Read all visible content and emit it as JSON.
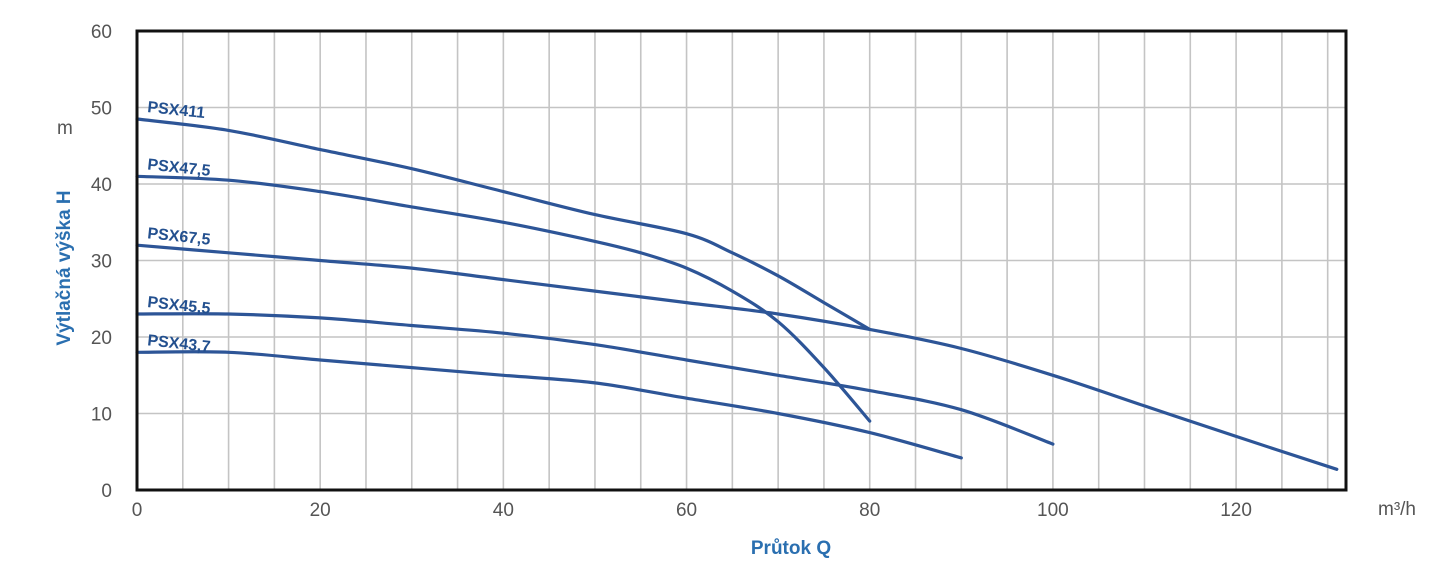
{
  "chart_data": {
    "type": "line",
    "title": "",
    "xlabel": "Průtok Q",
    "ylabel": "Výtlačná výška H",
    "x_unit": "m³/h",
    "y_unit": "m",
    "xlim": [
      0,
      132
    ],
    "ylim": [
      0,
      60
    ],
    "x_ticks": [
      0,
      20,
      40,
      60,
      80,
      100,
      120
    ],
    "y_ticks": [
      0,
      10,
      20,
      30,
      40,
      50,
      60
    ],
    "x_grid_step": 5,
    "y_grid_step": 10,
    "grid": true,
    "legend": "labels on curves",
    "line_color": "#2d5597",
    "series": [
      {
        "name": "PSX411",
        "points": [
          [
            0,
            48.5
          ],
          [
            10,
            47
          ],
          [
            20,
            44.5
          ],
          [
            30,
            42
          ],
          [
            40,
            39
          ],
          [
            50,
            36
          ],
          [
            60,
            33.5
          ],
          [
            65,
            31
          ],
          [
            70,
            28
          ],
          [
            75,
            24.5
          ],
          [
            80,
            21
          ]
        ]
      },
      {
        "name": "PSX47,5",
        "points": [
          [
            0,
            41
          ],
          [
            10,
            40.5
          ],
          [
            20,
            39
          ],
          [
            30,
            37
          ],
          [
            40,
            35
          ],
          [
            50,
            32.5
          ],
          [
            55,
            31
          ],
          [
            60,
            29
          ],
          [
            65,
            26
          ],
          [
            70,
            22
          ],
          [
            75,
            16
          ],
          [
            80,
            9
          ]
        ]
      },
      {
        "name": "PSX67,5",
        "points": [
          [
            0,
            32
          ],
          [
            10,
            31
          ],
          [
            20,
            30
          ],
          [
            30,
            29
          ],
          [
            40,
            27.5
          ],
          [
            50,
            26
          ],
          [
            60,
            24.5
          ],
          [
            70,
            23
          ],
          [
            80,
            21
          ],
          [
            90,
            18.5
          ],
          [
            100,
            15
          ],
          [
            110,
            11
          ],
          [
            120,
            7
          ],
          [
            131,
            2.7
          ]
        ]
      },
      {
        "name": "PSX45,5",
        "points": [
          [
            0,
            23
          ],
          [
            10,
            23
          ],
          [
            20,
            22.5
          ],
          [
            30,
            21.5
          ],
          [
            40,
            20.5
          ],
          [
            50,
            19
          ],
          [
            60,
            17
          ],
          [
            70,
            15
          ],
          [
            80,
            13
          ],
          [
            90,
            10.5
          ],
          [
            100,
            6
          ]
        ]
      },
      {
        "name": "PSX43,7",
        "points": [
          [
            0,
            18
          ],
          [
            10,
            18
          ],
          [
            20,
            17
          ],
          [
            30,
            16
          ],
          [
            40,
            15
          ],
          [
            50,
            14
          ],
          [
            60,
            12
          ],
          [
            70,
            10
          ],
          [
            80,
            7.5
          ],
          [
            90,
            4.2
          ]
        ]
      }
    ]
  }
}
